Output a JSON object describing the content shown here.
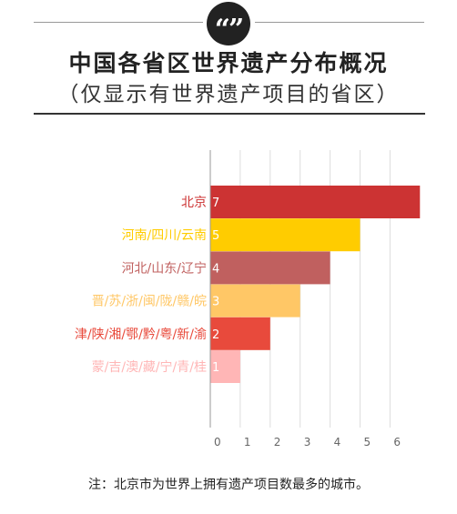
{
  "header": {
    "quote_mark": "“”",
    "title": "中国各省区世界遗产分布概况",
    "subtitle": "（仅显示有世界遗产项目的省区）"
  },
  "chart_data": {
    "type": "bar",
    "orientation": "horizontal",
    "title": "中国各省区世界遗产分布概况",
    "subtitle": "（仅显示有世界遗产项目的省区）",
    "categories": [
      "北京",
      "河南/四川/云南",
      "河北/山东/辽宁",
      "晋/苏/浙/闽/陇/赣/皖",
      "津/陕/湘/鄂/黔/粤/新/渝",
      "蒙/吉/澳/藏/宁/青/桂"
    ],
    "values": [
      7,
      5,
      4,
      3,
      2,
      1
    ],
    "colors": [
      "#cc3333",
      "#ffcc00",
      "#c0605f",
      "#ffc766",
      "#e84a3c",
      "#ffb6b6"
    ],
    "xlim": [
      0,
      6.9
    ],
    "xticks": [
      0,
      1,
      2,
      3,
      4,
      5,
      6
    ],
    "grid": true,
    "legend": "none"
  },
  "footer": {
    "note": "注：北京市为世界上拥有遗产项目数最多的城市。"
  }
}
